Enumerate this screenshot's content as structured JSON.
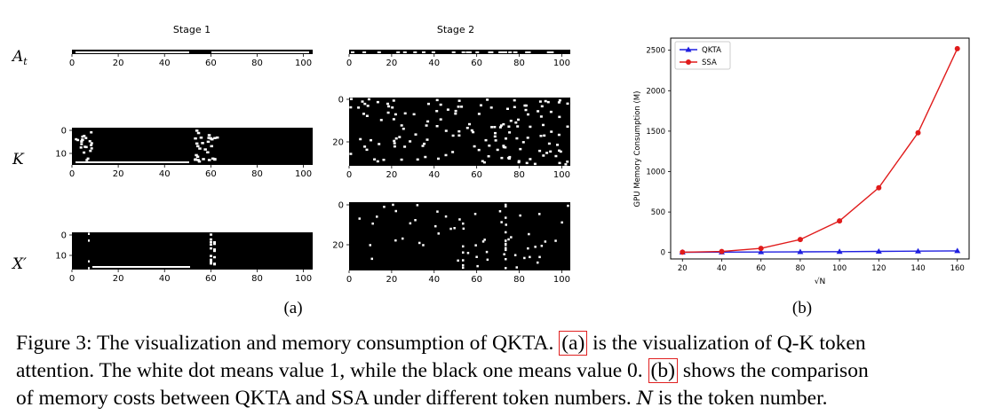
{
  "panel_a": {
    "stage_titles": [
      "Stage 1",
      "Stage 2"
    ],
    "row_labels": [
      {
        "main": "A",
        "sub": "t"
      },
      {
        "main": "K",
        "sub": ""
      },
      {
        "main": "X′",
        "sub": ""
      }
    ],
    "label": "(a)",
    "stage1_x_ticks": [
      "0",
      "20",
      "40",
      "60",
      "80",
      "100"
    ],
    "stage2_x_ticks": [
      "0",
      "20",
      "40",
      "60",
      "80",
      "100"
    ],
    "K_stage1_y_ticks": [
      "0",
      "10"
    ],
    "X_stage1_y_ticks": [
      "0",
      "10"
    ],
    "K_stage2_y_ticks": [
      "0",
      "20"
    ],
    "X_stage2_y_ticks": [
      "0",
      "20"
    ]
  },
  "panel_b": {
    "label": "(b)"
  },
  "chart_data": {
    "type": "line",
    "x": [
      20,
      40,
      60,
      80,
      100,
      120,
      140,
      160
    ],
    "series": [
      {
        "name": "QKTA",
        "values": [
          2,
          4,
          6,
          8,
          10,
          13,
          16,
          20
        ],
        "color": "#1f1fe0",
        "marker": "triangle"
      },
      {
        "name": "SSA",
        "values": [
          3,
          12,
          50,
          160,
          390,
          800,
          1480,
          2520
        ],
        "color": "#e01b1b",
        "marker": "circle"
      }
    ],
    "xlabel": "√N",
    "ylabel": "GPU Memory Consumption (M)",
    "xticks": [
      "20",
      "40",
      "60",
      "80",
      "100",
      "120",
      "140",
      "160"
    ],
    "yticks": [
      "0",
      "500",
      "1000",
      "1500",
      "2000",
      "2500"
    ],
    "xlim": [
      14,
      166
    ],
    "ylim": [
      -80,
      2650
    ],
    "legend": "top-left"
  },
  "caption": {
    "prefix": "Figure 3: The visualization and memory consumption of QKTA. ",
    "ref_a": "(a)",
    "mid1": " is the visualization of Q-K token",
    "line2_start": "attention. The white dot means value 1, while the black one means value 0. ",
    "ref_b": "(b)",
    "line2_end": " shows the comparison",
    "line3_start": "of memory costs between QKTA and SSA under different token numbers. ",
    "symbol_n": "N",
    "line3_end": " is the token number."
  }
}
